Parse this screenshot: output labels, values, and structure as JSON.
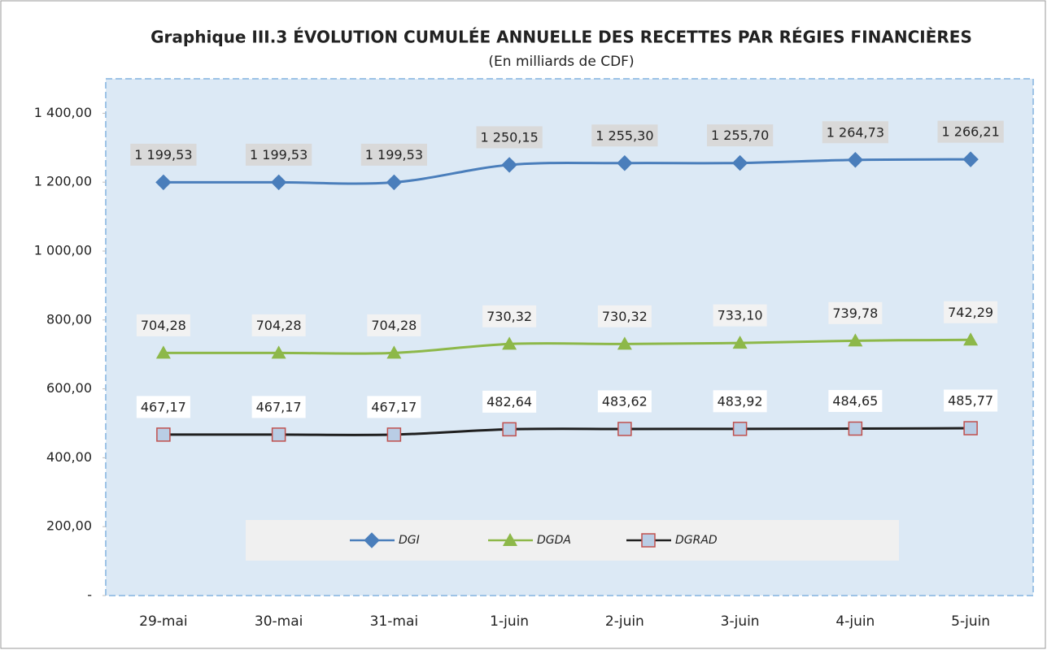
{
  "chart_data": {
    "type": "line",
    "title": "Graphique III.3 ÉVOLUTION CUMULÉE ANNUELLE  DES RECETTES  PAR RÉGIES  FINANCIÈRES",
    "subtitle": "(En milliards de CDF)",
    "categories": [
      "29-mai",
      "30-mai",
      "31-mai",
      "1-juin",
      "2-juin",
      "3-juin",
      "4-juin",
      "5-juin"
    ],
    "series": [
      {
        "name": "DGI",
        "color": "#4a7ebb",
        "marker": "diamond",
        "values": [
          1199.53,
          1199.53,
          1199.53,
          1250.15,
          1255.3,
          1255.7,
          1264.73,
          1266.21
        ],
        "value_labels": [
          "1 199,53",
          "1 199,53",
          "1 199,53",
          "1 250,15",
          "1 255,30",
          "1 255,70",
          "1 264,73",
          "1 266,21"
        ]
      },
      {
        "name": "DGDA",
        "color": "#8db849",
        "marker": "triangle",
        "values": [
          704.28,
          704.28,
          704.28,
          730.32,
          730.32,
          733.1,
          739.78,
          742.29
        ],
        "value_labels": [
          "704,28",
          "704,28",
          "704,28",
          "730,32",
          "730,32",
          "733,10",
          "739,78",
          "742,29"
        ]
      },
      {
        "name": "DGRAD",
        "color": "#1f1f1f",
        "marker": "square",
        "values": [
          467.17,
          467.17,
          467.17,
          482.64,
          483.62,
          483.92,
          484.65,
          485.77
        ],
        "value_labels": [
          "467,17",
          "467,17",
          "467,17",
          "482,64",
          "483,62",
          "483,92",
          "484,65",
          "485,77"
        ]
      }
    ],
    "ylim": [
      0,
      1500
    ],
    "yticks": [
      {
        "value": 0,
        "label": "-"
      },
      {
        "value": 200,
        "label": "200,00"
      },
      {
        "value": 400,
        "label": "400,00"
      },
      {
        "value": 600,
        "label": "600,00"
      },
      {
        "value": 800,
        "label": "800,00"
      },
      {
        "value": 1000,
        "label": "1 000,00"
      },
      {
        "value": 1200,
        "label": "1 200,00"
      },
      {
        "value": 1400,
        "label": "1 400,00"
      }
    ],
    "legend": "bottom"
  }
}
